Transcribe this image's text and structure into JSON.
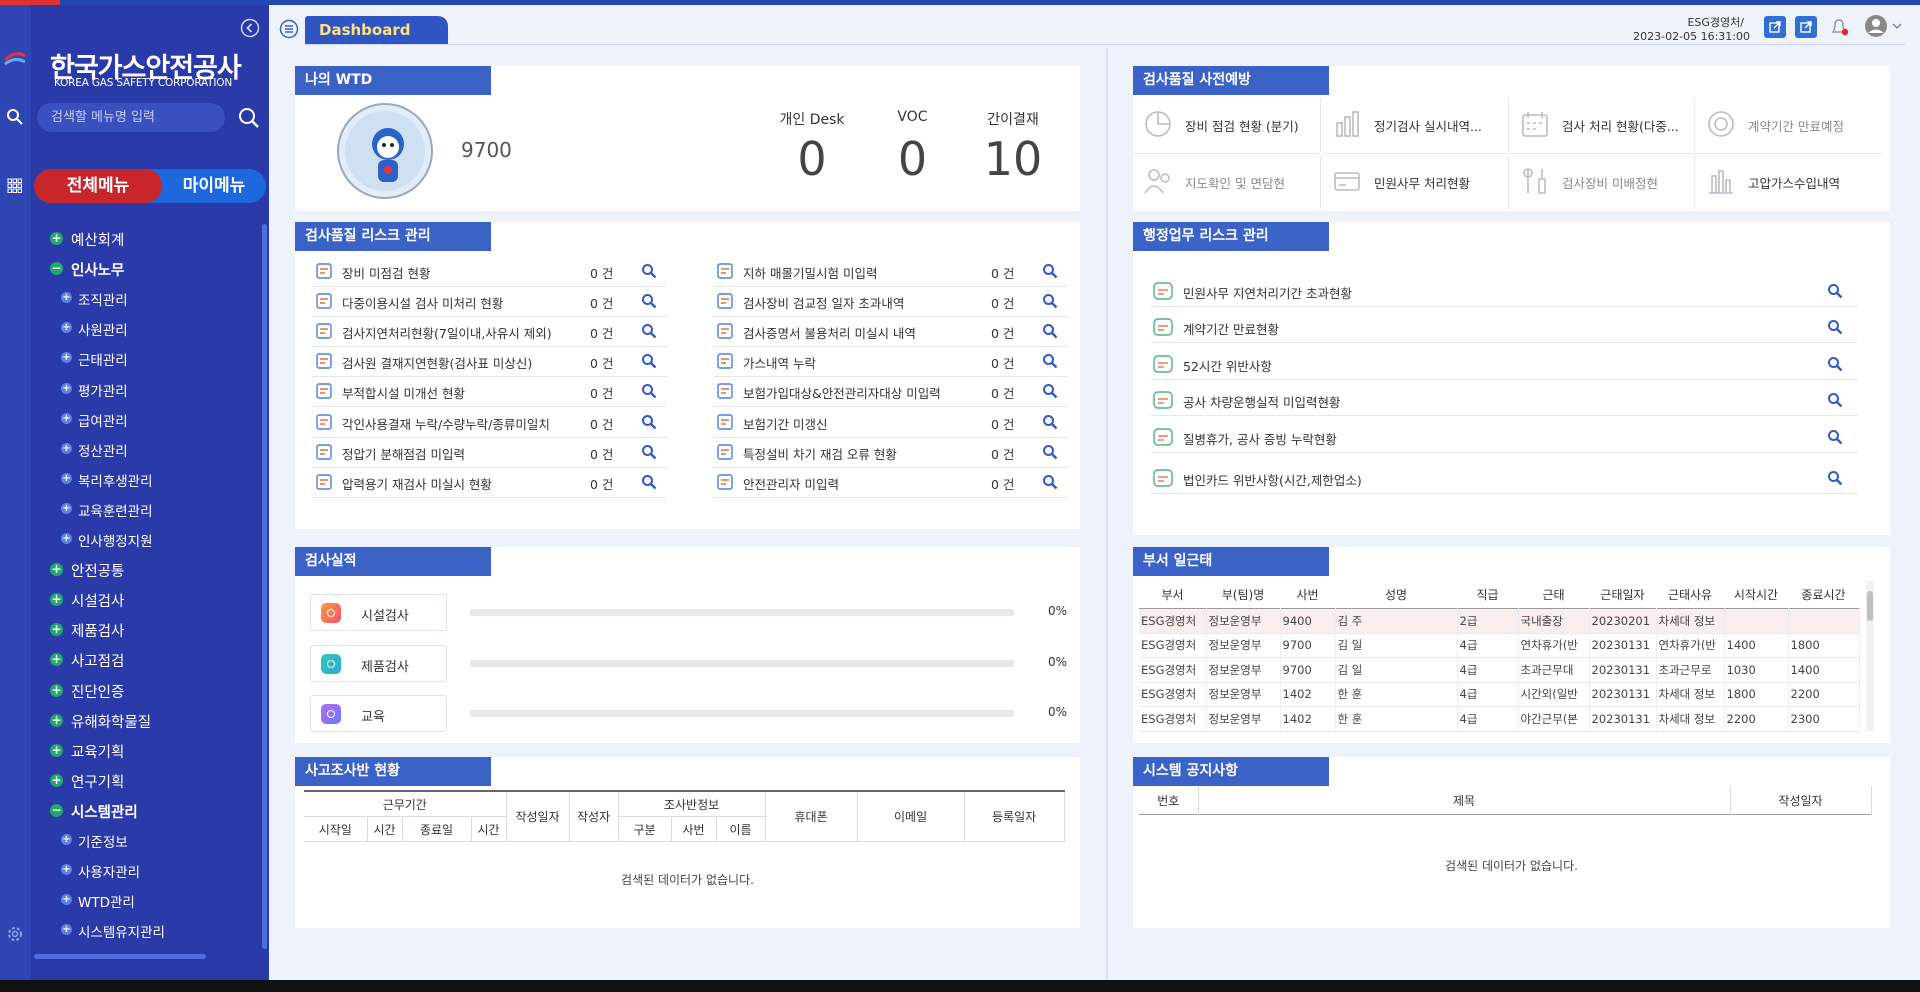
{
  "header": {
    "tab": "Dashboard",
    "user_org": "ESG경영처/",
    "datetime": "2023-02-05 16:31:00"
  },
  "sidebar": {
    "logo_title": "한국가스안전공사",
    "logo_subtitle": "KOREA GAS SAFETY CORPORATION",
    "search_placeholder": "검색할 메뉴명 입력",
    "tabs": [
      "전체메뉴",
      "마이메뉴"
    ],
    "menu": [
      {
        "label": "예산회계",
        "level": 1,
        "expanded": false
      },
      {
        "label": "인사노무",
        "level": 1,
        "expanded": true
      },
      {
        "label": "조직관리",
        "level": 2
      },
      {
        "label": "사원관리",
        "level": 2
      },
      {
        "label": "근태관리",
        "level": 2
      },
      {
        "label": "평가관리",
        "level": 2
      },
      {
        "label": "급여관리",
        "level": 2
      },
      {
        "label": "정산관리",
        "level": 2
      },
      {
        "label": "복리후생관리",
        "level": 2
      },
      {
        "label": "교육훈련관리",
        "level": 2
      },
      {
        "label": "인사행정지원",
        "level": 2
      },
      {
        "label": "안전공통",
        "level": 1,
        "expanded": false
      },
      {
        "label": "시설검사",
        "level": 1,
        "expanded": false
      },
      {
        "label": "제품검사",
        "level": 1,
        "expanded": false
      },
      {
        "label": "사고점검",
        "level": 1,
        "expanded": false
      },
      {
        "label": "진단인증",
        "level": 1,
        "expanded": false
      },
      {
        "label": "유해화학물질",
        "level": 1,
        "expanded": false
      },
      {
        "label": "교육기획",
        "level": 1,
        "expanded": false
      },
      {
        "label": "연구기획",
        "level": 1,
        "expanded": false
      },
      {
        "label": "시스템관리",
        "level": 1,
        "expanded": true
      },
      {
        "label": "기준정보",
        "level": 2
      },
      {
        "label": "사용자관리",
        "level": 2
      },
      {
        "label": "WTD관리",
        "level": 2
      },
      {
        "label": "시스템유지관리",
        "level": 2
      }
    ]
  },
  "wtd": {
    "title": "나의 WTD",
    "user_id": "9700",
    "stats": [
      {
        "label": "개인 Desk",
        "value": 0
      },
      {
        "label": "VOC",
        "value": 0
      },
      {
        "label": "간이결재",
        "value": 10
      }
    ]
  },
  "quality_risk": {
    "title": "검사품질 리스크 관리",
    "items": [
      {
        "label": "장비 미점검 현황",
        "count": "0 건"
      },
      {
        "label": "다중이용시설 검사 미처리 현황",
        "count": "0 건"
      },
      {
        "label": "검사지연처리현황(7일이내,사유시 제외)",
        "count": "0 건"
      },
      {
        "label": "검사원 결재지연현황(검사표 미상신)",
        "count": "0 건"
      },
      {
        "label": "부적합시설 미개선 현황",
        "count": "0 건"
      },
      {
        "label": "각인사용결재 누락/수량누락/종류미일치",
        "count": "0 건"
      },
      {
        "label": "정압기 분해점검 미입력",
        "count": "0 건"
      },
      {
        "label": "압력용기 재검사 미실시 현황",
        "count": "0 건"
      },
      {
        "label": "지하 매몰기밀시험 미입력",
        "count": "0 건"
      },
      {
        "label": "검사장비 검교정 일자 초과내역",
        "count": "0 건"
      },
      {
        "label": "검사증명서 불용처리 미실시 내역",
        "count": "0 건"
      },
      {
        "label": "가스내역 누락",
        "count": "0 건"
      },
      {
        "label": "보험가입대상&안전관리자대상 미입력",
        "count": "0 건"
      },
      {
        "label": "보험기간 미갱신",
        "count": "0 건"
      },
      {
        "label": "특정설비 차기 재검 오류 현황",
        "count": "0 건"
      },
      {
        "label": "안전관리자 미입력",
        "count": "0 건"
      }
    ]
  },
  "performance": {
    "title": "검사실적",
    "items": [
      {
        "label": "시설검사",
        "percent": "0%"
      },
      {
        "label": "제품검사",
        "percent": "0%"
      },
      {
        "label": "교육",
        "percent": "0%"
      }
    ]
  },
  "accident": {
    "title": "사고조사반 현황",
    "group_work": "근무기간",
    "group_team": "조사반정보",
    "columns": [
      "시작일",
      "시간",
      "종료일",
      "시간",
      "작성일자",
      "작성자",
      "구분",
      "사번",
      "이름",
      "휴대폰",
      "이메일",
      "등록일자"
    ],
    "empty": "검색된 데이터가 없습니다."
  },
  "prevention": {
    "title": "검사품질 사전예방",
    "items": [
      "장비 점검 현황 (분기)",
      "정기검사 실시내역...",
      "검사 처리 현황(다중...",
      "계약기간 만료예정",
      "지도확인 및 면담현",
      "민원사무 처리현황",
      "검사장비 미배정현",
      "고압가스수입내역"
    ]
  },
  "admin_risk": {
    "title": "행정업무 리스크 관리",
    "items": [
      "민원사무 지연처리기간 초과현황",
      "계약기간 만료현황",
      "52시간 위반사항",
      "공사 차량운행실적 미입력현황",
      "질병휴가, 공사 증빙 누락현황",
      "법인카드 위반사항(시간,제한업소)"
    ]
  },
  "attendance": {
    "title": "부서 일근태",
    "columns": [
      "부서",
      "부(팀)명",
      "사번",
      "성명",
      "직급",
      "근태",
      "근태일자",
      "근태사유",
      "시작시간",
      "종료시간"
    ],
    "rows": [
      [
        "ESG경영처",
        "정보운영부",
        "9400",
        "김 주",
        "2급",
        "국내출장",
        "20230201",
        "차세대 정보"
      ],
      [
        "ESG경영처",
        "정보운영부",
        "9700",
        "김 일",
        "4급",
        "연차휴가(반",
        "20230131",
        "연차휴가(반",
        "1400",
        "1800"
      ],
      [
        "ESG경영처",
        "정보운영부",
        "9700",
        "김 일",
        "4급",
        "초과근무대",
        "20230131",
        "초과근무로",
        "1030",
        "1400"
      ],
      [
        "ESG경영처",
        "정보운영부",
        "1402",
        "한 훈",
        "4급",
        "시간외(일반",
        "20230131",
        "차세대 정보",
        "1800",
        "2200"
      ],
      [
        "ESG경영처",
        "정보운영부",
        "1402",
        "한 훈",
        "4급",
        "야간근무(본",
        "20230131",
        "차세대 정보",
        "2200",
        "2300"
      ]
    ]
  },
  "notice": {
    "title": "시스템 공지사항",
    "columns": [
      "번호",
      "제목",
      "작성일자"
    ],
    "empty": "검색된 데이터가 없습니다."
  }
}
